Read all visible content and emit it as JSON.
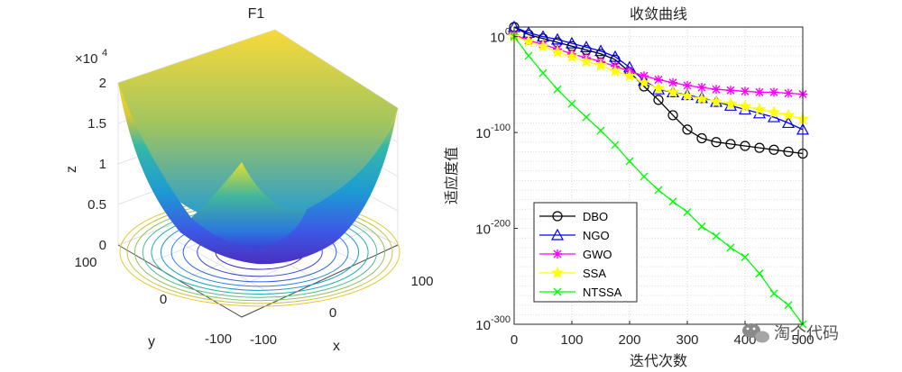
{
  "chart_data": [
    {
      "type": "surface3d",
      "title": "F1",
      "function": "z = x^2 + y^2",
      "xlabel": "x",
      "ylabel": "y",
      "zlabel": "z",
      "z_exponent_label": "×10",
      "z_exponent_power": "4",
      "xlim": [
        -100,
        100
      ],
      "ylim": [
        -100,
        100
      ],
      "zlim": [
        0,
        20000
      ],
      "x_ticks": [
        "-100",
        "0",
        "100"
      ],
      "y_ticks": [
        "-100",
        "0",
        "100"
      ],
      "z_ticks": [
        "0",
        "0.5",
        "1",
        "1.5",
        "2"
      ],
      "contour_levels": [
        1000,
        2000,
        3000,
        4000,
        5000,
        6000,
        7000,
        8000,
        9000,
        10000
      ],
      "grid": true
    },
    {
      "type": "line",
      "title": "收敛曲线",
      "xlabel": "迭代次数",
      "ylabel": "适应度值",
      "yscale": "log",
      "xlim": [
        0,
        500
      ],
      "ylim_exp": [
        -300,
        10
      ],
      "x_ticks": [
        "0",
        "100",
        "200",
        "300",
        "400",
        "500"
      ],
      "y_ticks": [
        {
          "base": "10",
          "exp": "0",
          "value_exp": 0
        },
        {
          "base": "10",
          "exp": "-100",
          "value_exp": -100
        },
        {
          "base": "10",
          "exp": "-200",
          "value_exp": -200
        },
        {
          "base": "10",
          "exp": "-300",
          "value_exp": -300
        }
      ],
      "legend_position": "bottom-left",
      "grid": true,
      "value_unit": "log10 of fitness value",
      "series": [
        {
          "name": "DBO",
          "color": "#000000",
          "marker": "circle",
          "x": [
            0,
            25,
            50,
            75,
            100,
            125,
            150,
            175,
            200,
            225,
            250,
            275,
            300,
            325,
            350,
            375,
            400,
            425,
            450,
            475,
            500
          ],
          "log10_y": [
            10,
            2,
            -2,
            -6,
            -10,
            -14,
            -18,
            -24,
            -37,
            -52,
            -66,
            -82,
            -97,
            -106,
            -110,
            -112,
            -114,
            -116,
            -118,
            -120,
            -122
          ]
        },
        {
          "name": "NGO",
          "color": "#0000ff",
          "marker": "triangle",
          "x": [
            0,
            25,
            50,
            75,
            100,
            125,
            150,
            175,
            200,
            225,
            250,
            275,
            300,
            325,
            350,
            375,
            400,
            425,
            450,
            475,
            500
          ],
          "log10_y": [
            10,
            4,
            0,
            -3,
            -7,
            -11,
            -15,
            -21,
            -32,
            -46,
            -55,
            -58,
            -61,
            -64,
            -68,
            -72,
            -76,
            -80,
            -84,
            -90,
            -97
          ]
        },
        {
          "name": "GWO",
          "color": "#ff00ff",
          "marker": "star",
          "x": [
            0,
            25,
            50,
            75,
            100,
            125,
            150,
            175,
            200,
            225,
            250,
            275,
            300,
            325,
            350,
            375,
            400,
            425,
            450,
            475,
            500
          ],
          "log10_y": [
            2,
            -4,
            -8,
            -13,
            -18,
            -22,
            -26,
            -31,
            -36,
            -41,
            -45,
            -48,
            -51,
            -53,
            -55,
            -56,
            -57,
            -58,
            -58,
            -59,
            -60
          ]
        },
        {
          "name": "SSA",
          "color": "#ffff00",
          "marker": "pentagram",
          "x": [
            0,
            25,
            50,
            75,
            100,
            125,
            150,
            175,
            200,
            225,
            250,
            275,
            300,
            325,
            350,
            375,
            400,
            425,
            450,
            475,
            500
          ],
          "log10_y": [
            0,
            -5,
            -10,
            -16,
            -21,
            -26,
            -30,
            -36,
            -41,
            -48,
            -54,
            -58,
            -62,
            -65,
            -68,
            -70,
            -73,
            -76,
            -79,
            -82,
            -86
          ]
        },
        {
          "name": "NTSSA",
          "color": "#00ff00",
          "marker": "x",
          "x": [
            0,
            25,
            50,
            75,
            100,
            125,
            150,
            175,
            200,
            225,
            250,
            275,
            300,
            325,
            350,
            375,
            400,
            425,
            450,
            475,
            500
          ],
          "log10_y": [
            0,
            -20,
            -38,
            -55,
            -70,
            -84,
            -98,
            -113,
            -130,
            -146,
            -160,
            -172,
            -183,
            -198,
            -208,
            -220,
            -230,
            -247,
            -268,
            -280,
            -300
          ]
        }
      ]
    }
  ],
  "watermark": "淘个代码"
}
